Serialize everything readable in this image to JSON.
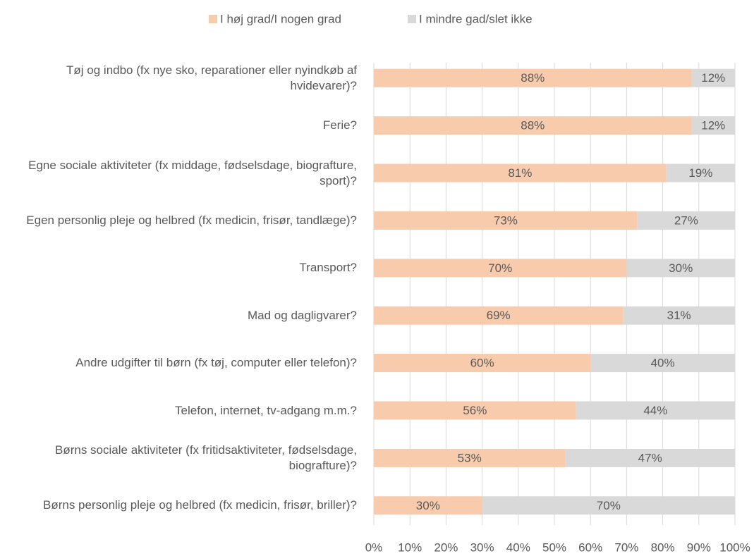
{
  "chart_data": {
    "type": "stacked-horizontal-bar",
    "categories": [
      "Tøj og indbo (fx nye sko, reparationer eller nyindkøb af hvidevarer)?",
      "Ferie?",
      "Egne sociale aktiviteter (fx middage, fødselsdage, biografture, sport)?",
      "Egen personlig pleje og helbred (fx medicin, frisør, tandlæge)?",
      "Transport?",
      "Mad og dagligvarer?",
      "Andre udgifter til børn (fx tøj, computer eller telefon)?",
      "Telefon, internet, tv-adgang m.m.?",
      "Børns sociale aktiviteter (fx fritidsaktiviteter, fødselsdage, biografture)?",
      "Børns personlig pleje og helbred (fx medicin, frisør, briller)?"
    ],
    "series": [
      {
        "name": "I høj grad/I nogen grad",
        "color": "#f8cbad",
        "values": [
          88,
          88,
          81,
          73,
          70,
          69,
          60,
          56,
          53,
          30
        ],
        "value_labels": [
          "88%",
          "88%",
          "81%",
          "73%",
          "70%",
          "69%",
          "60%",
          "56%",
          "53%",
          "30%"
        ]
      },
      {
        "name": "I mindre gad/slet ikke",
        "color": "#d9d9d9",
        "values": [
          12,
          12,
          19,
          27,
          30,
          31,
          40,
          44,
          47,
          70
        ],
        "value_labels": [
          "12%",
          "12%",
          "19%",
          "27%",
          "30%",
          "31%",
          "40%",
          "44%",
          "47%",
          "70%"
        ]
      }
    ],
    "xlim": [
      0,
      100
    ],
    "xticks": [
      {
        "value": 0,
        "label": "0%"
      },
      {
        "value": 10,
        "label": "10%"
      },
      {
        "value": 20,
        "label": "20%"
      },
      {
        "value": 30,
        "label": "30%"
      },
      {
        "value": 40,
        "label": "40%"
      },
      {
        "value": 50,
        "label": "50%"
      },
      {
        "value": 60,
        "label": "60%"
      },
      {
        "value": 70,
        "label": "70%"
      },
      {
        "value": 80,
        "label": "80%"
      },
      {
        "value": 90,
        "label": "90%"
      },
      {
        "value": 100,
        "label": "100%"
      }
    ],
    "grid": true,
    "legend": "top"
  }
}
